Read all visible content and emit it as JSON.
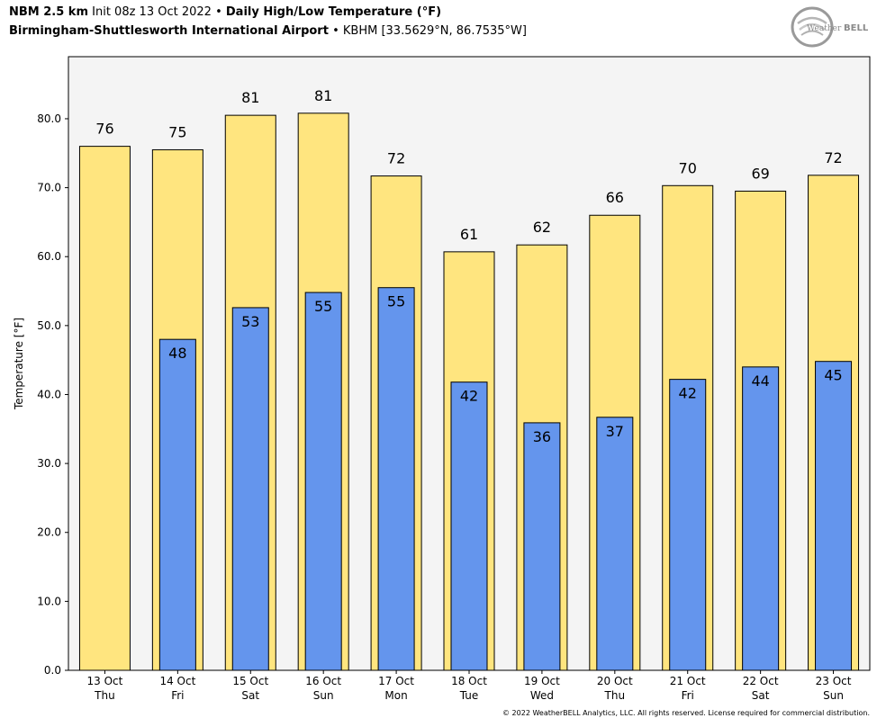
{
  "header": {
    "model": "NBM 2.5 km",
    "init": "Init 08z 13 Oct 2022",
    "sep1": "•",
    "title": "Daily High/Low Temperature (°F)",
    "station": "Birmingham-Shuttlesworth International Airport",
    "sep2": "•",
    "location": "KBHM [33.5629°N, 86.7535°W]"
  },
  "logo": {
    "text_weather": "Weather",
    "text_bell": "BELL"
  },
  "footer": "© 2022 WeatherBELL Analytics, LLC. All rights reserved. License required for commercial distribution.",
  "colors": {
    "high": "#ffe57f",
    "low": "#6495ed",
    "plot_bg": "#f4f4f4"
  },
  "chart_data": {
    "type": "bar",
    "title": "Daily High/Low Temperature (°F)",
    "ylabel": "Temperature [°F]",
    "ylim": [
      0,
      89
    ],
    "yticks": [
      "0.0",
      "10.0",
      "20.0",
      "30.0",
      "40.0",
      "50.0",
      "60.0",
      "70.0",
      "80.0"
    ],
    "categories": [
      [
        "13 Oct",
        "Thu"
      ],
      [
        "14 Oct",
        "Fri"
      ],
      [
        "15 Oct",
        "Sat"
      ],
      [
        "16 Oct",
        "Sun"
      ],
      [
        "17 Oct",
        "Mon"
      ],
      [
        "18 Oct",
        "Tue"
      ],
      [
        "19 Oct",
        "Wed"
      ],
      [
        "20 Oct",
        "Thu"
      ],
      [
        "21 Oct",
        "Fri"
      ],
      [
        "22 Oct",
        "Sat"
      ],
      [
        "23 Oct",
        "Sun"
      ]
    ],
    "series": [
      {
        "key": "high",
        "values": [
          76,
          75.5,
          80.5,
          80.8,
          71.7,
          60.7,
          61.7,
          66,
          70.3,
          69.5,
          71.8
        ],
        "labels": [
          "76",
          "75",
          "81",
          "81",
          "72",
          "61",
          "62",
          "66",
          "70",
          "69",
          "72"
        ]
      },
      {
        "key": "low",
        "values": [
          null,
          48,
          52.6,
          54.8,
          55.5,
          41.8,
          35.9,
          36.7,
          42.2,
          44,
          44.8
        ],
        "labels": [
          "",
          "48",
          "53",
          "55",
          "55",
          "42",
          "36",
          "37",
          "42",
          "44",
          "45"
        ]
      }
    ],
    "grid": false,
    "legend": "none"
  }
}
